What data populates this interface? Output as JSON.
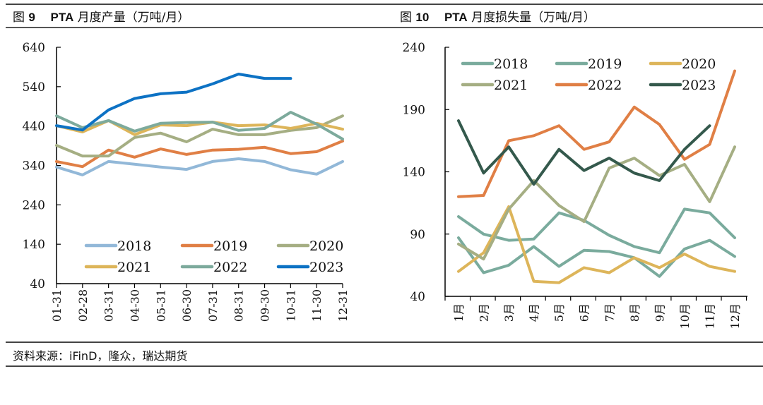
{
  "figures": [
    {
      "title_prefix": "图",
      "title_number": "9",
      "title_code": "PTA",
      "title_text": "月度产量（万吨/月）"
    },
    {
      "title_prefix": "图",
      "title_number": "10",
      "title_code": "PTA",
      "title_text": "月度损失量（万吨/月）"
    }
  ],
  "source_text": "资料来源：iFinD，隆众，瑞达期货",
  "chart_data": [
    {
      "type": "line",
      "title": "PTA 月度产量（万吨/月）",
      "xlabel": "",
      "ylabel": "",
      "categories": [
        "01-31",
        "02-28",
        "03-31",
        "04-30",
        "05-31",
        "06-30",
        "07-31",
        "08-31",
        "09-30",
        "10-31",
        "11-30",
        "12-31"
      ],
      "ylim": [
        40,
        640
      ],
      "yticks": [
        40,
        140,
        240,
        340,
        440,
        540,
        640
      ],
      "ytick_labels": [
        "40",
        "140",
        "240",
        "340",
        "440",
        "540",
        "640"
      ],
      "legend_position": "bottom",
      "grid": false,
      "series": [
        {
          "name": "2018",
          "color": "#92b8d8",
          "values": [
            336,
            316,
            350,
            343,
            336,
            330,
            350,
            357,
            350,
            329,
            318,
            350
          ]
        },
        {
          "name": "2019",
          "color": "#e07f45",
          "values": [
            350,
            337,
            379,
            361,
            382,
            368,
            379,
            381,
            386,
            370,
            375,
            402
          ]
        },
        {
          "name": "2020",
          "color": "#a5ae83",
          "values": [
            391,
            364,
            364,
            411,
            422,
            400,
            432,
            418,
            418,
            429,
            436,
            466
          ]
        },
        {
          "name": "2021",
          "color": "#ddb55a",
          "values": [
            441,
            425,
            454,
            418,
            443,
            441,
            450,
            441,
            443,
            434,
            447,
            432
          ]
        },
        {
          "name": "2022",
          "color": "#7daa9c",
          "values": [
            466,
            436,
            454,
            427,
            447,
            449,
            450,
            429,
            434,
            475,
            445,
            407
          ]
        },
        {
          "name": "2023",
          "color": "#0d72c4",
          "values": [
            441,
            430,
            481,
            510,
            522,
            526,
            547,
            572,
            561,
            561,
            null,
            null
          ]
        }
      ]
    },
    {
      "type": "line",
      "title": "PTA 月度损失量（万吨/月）",
      "xlabel": "",
      "ylabel": "",
      "categories": [
        "1月",
        "2月",
        "3月",
        "4月",
        "5月",
        "6月",
        "7月",
        "8月",
        "9月",
        "10月",
        "11月",
        "12月"
      ],
      "ylim": [
        40,
        240
      ],
      "yticks": [
        40,
        90,
        140,
        190,
        240
      ],
      "ytick_labels": [
        "40",
        "90",
        "140",
        "190",
        "240"
      ],
      "legend_position": "top",
      "grid": false,
      "series": [
        {
          "name": "2018",
          "color": "#7aab9d",
          "values": [
            87,
            59,
            65,
            80,
            64,
            77,
            76,
            71,
            56,
            78,
            85,
            72
          ]
        },
        {
          "name": "2019",
          "color": "#7aab9d",
          "values": [
            104,
            90,
            85,
            86,
            107,
            101,
            89,
            80,
            75,
            110,
            107,
            87
          ]
        },
        {
          "name": "2020",
          "color": "#ddb55a",
          "values": [
            60,
            75,
            112,
            52,
            51,
            63,
            59,
            71,
            63,
            74,
            64,
            60
          ]
        },
        {
          "name": "2021",
          "color": "#a5ae83",
          "values": [
            82,
            70,
            110,
            133,
            113,
            100,
            143,
            151,
            137,
            146,
            116,
            160
          ]
        },
        {
          "name": "2022",
          "color": "#e07f45",
          "values": [
            120,
            121,
            165,
            169,
            177,
            158,
            164,
            192,
            178,
            150,
            162,
            221
          ]
        },
        {
          "name": "2023",
          "color": "#34594c",
          "values": [
            181,
            139,
            160,
            130,
            158,
            141,
            151,
            139,
            133,
            158,
            177,
            null
          ]
        }
      ]
    }
  ]
}
